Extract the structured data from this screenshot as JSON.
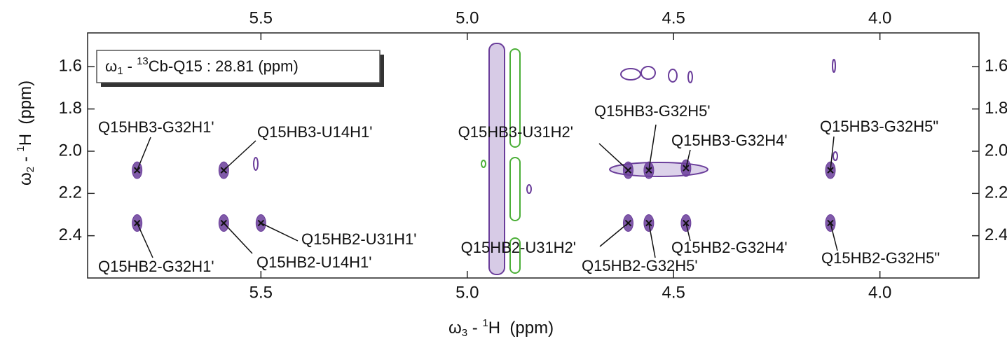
{
  "chart_data": {
    "type": "scatter",
    "inset": {
      "symbol": "ω",
      "sub": "1",
      "dash": " - ",
      "sup": "13",
      "rest": "Cb-Q15 : 28.81 (ppm)"
    },
    "x_label": {
      "symbol": "ω",
      "sub": "3",
      "dash": " - ",
      "sup": "1",
      "rest": "H  (ppm)"
    },
    "y_label": {
      "symbol": "ω",
      "sub": "2",
      "dash": " - ",
      "sup": "1",
      "rest": "H  (ppm)"
    },
    "xlim": [
      5.92,
      3.76
    ],
    "ylim": [
      2.6,
      1.44
    ],
    "xticks": [
      5.5,
      {
        "value": 5,
        "label": "5.0"
      },
      4.5,
      {
        "value": 4,
        "label": "4.0"
      }
    ],
    "yticks": [
      1.6,
      1.8,
      {
        "value": 2,
        "label": "2.0"
      },
      2.2,
      2.4
    ],
    "series": [
      {
        "color": "#6a3d9a",
        "x": [
          5.8,
          5.59,
          4.61,
          4.56,
          4.47,
          4.12,
          5.8,
          5.59,
          5.5,
          4.61,
          4.56,
          4.47,
          4.12
        ],
        "values": [
          2.09,
          2.09,
          2.09,
          2.09,
          2.08,
          2.09,
          2.34,
          2.34,
          2.34,
          2.34,
          2.34,
          2.34,
          2.34
        ],
        "labels": [
          "Q15HB3-G32H1'",
          "Q15HB3-U14H1'",
          "Q15HB3-U31H2'",
          "Q15HB3-G32H5'",
          "Q15HB3-G32H4'",
          "Q15HB3-G32H5\"",
          "Q15HB2-G32H1'",
          "Q15HB2-U14H1'",
          "Q15HB2-U31H1'",
          "Q15HB2-U31H2'",
          "Q15HB2-G32H5'",
          "Q15HB2-G32H4'",
          "Q15HB2-G32H5\""
        ]
      }
    ]
  }
}
